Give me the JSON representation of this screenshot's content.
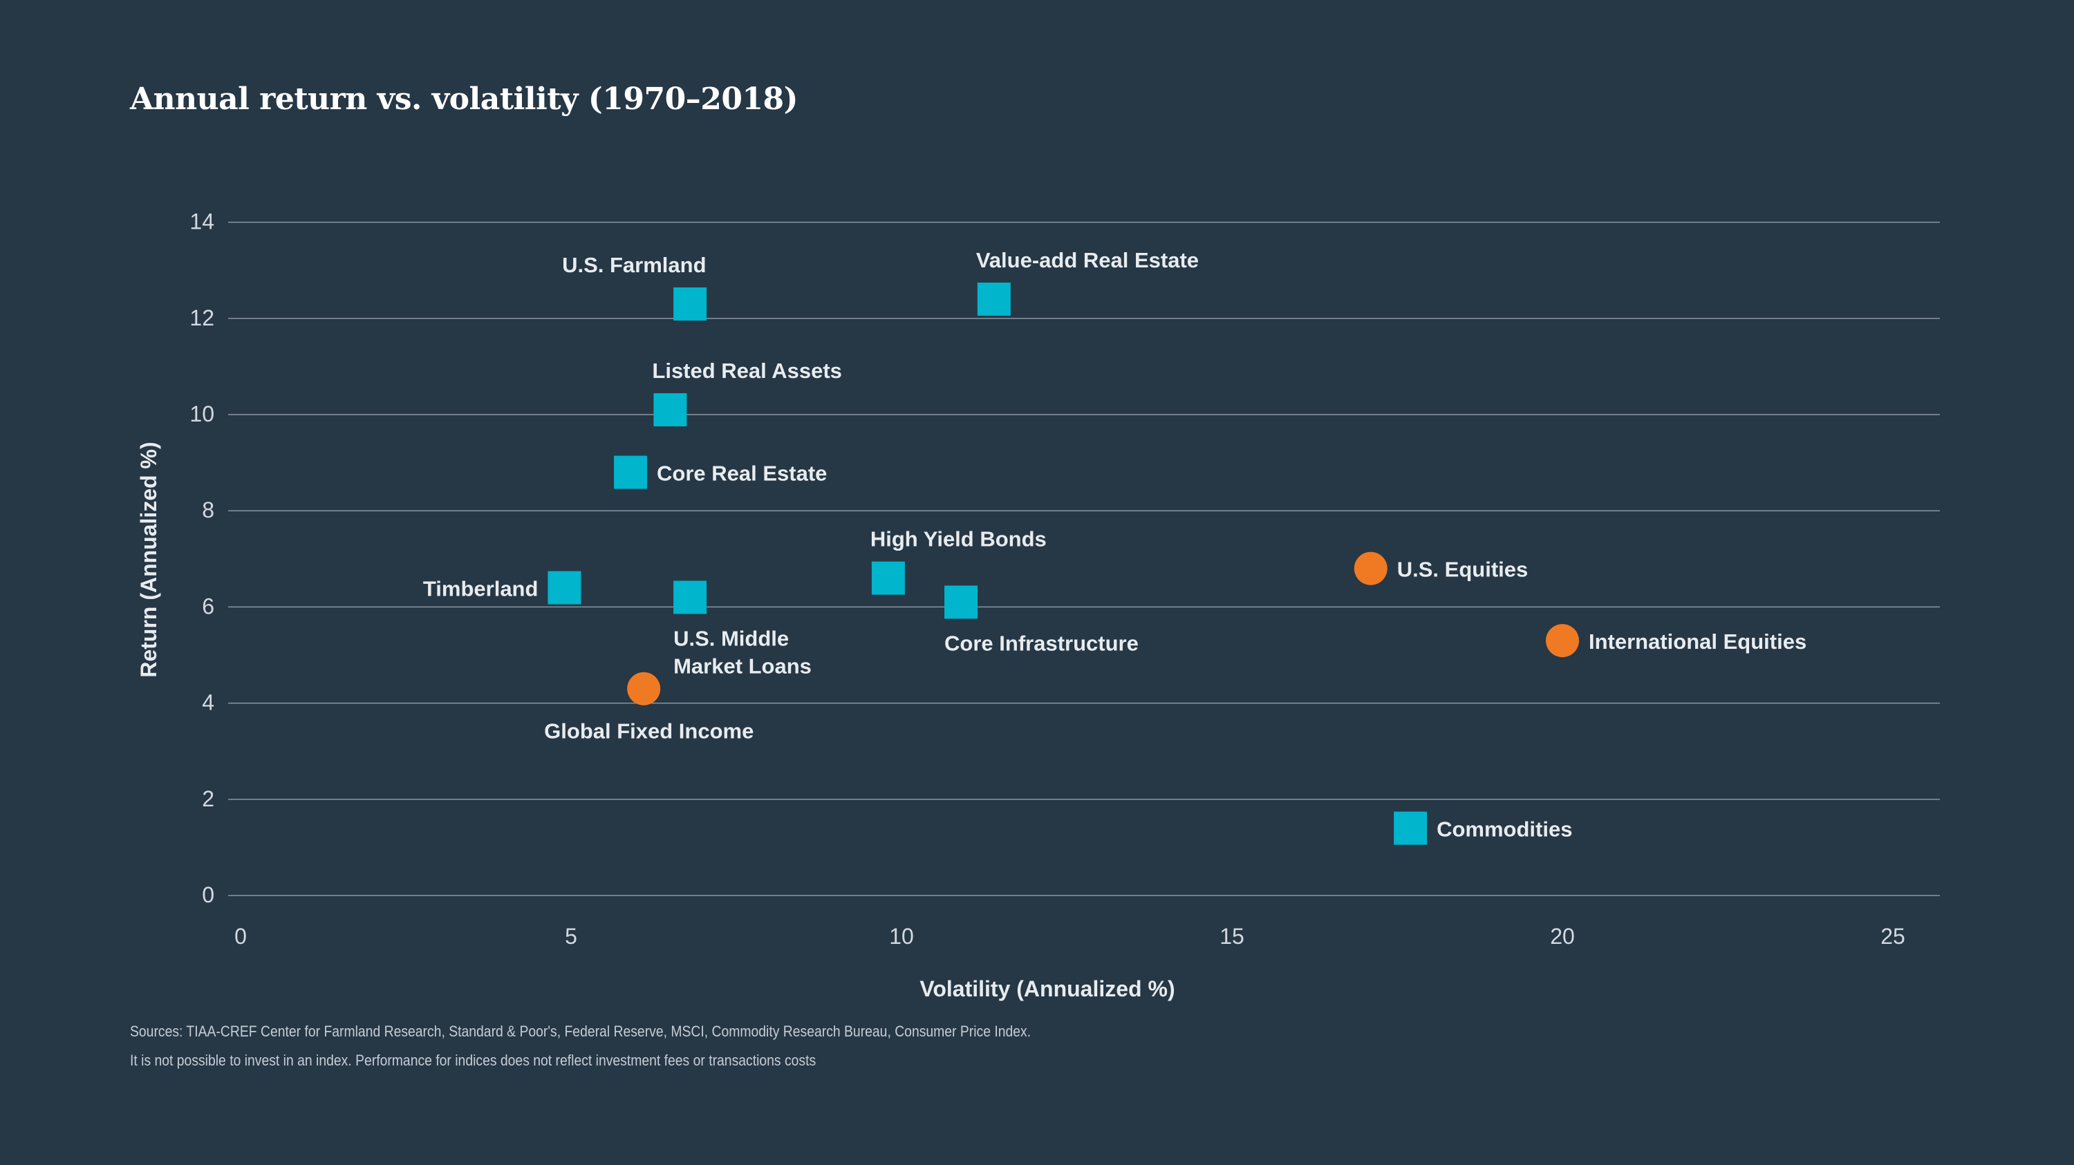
{
  "page": {
    "title": "Annual return vs. volatility (1970–2018)",
    "footnotes": [
      "Sources: TIAA-CREF Center for Farmland Research, Standard & Poor's, Federal Reserve, MSCI, Commodity Research Bureau, Consumer Price Index.",
      "It is not possible to invest in an index. Performance for indices does not reflect investment fees or transactions costs"
    ]
  },
  "colors": {
    "background": "#263746",
    "square_marker": "#00b5cc",
    "circle_marker": "#f07a23",
    "gridline": "#8a96a1",
    "label_text": "#e8ecef",
    "axis_text": "#d4dae0"
  },
  "chart_data": {
    "type": "scatter",
    "title": "Annual return vs. volatility (1970–2018)",
    "xlabel": "Volatility (Annualized %)",
    "ylabel": "Return (Annualized %)",
    "xlim": [
      0,
      26
    ],
    "ylim": [
      0,
      14
    ],
    "xticks": [
      0,
      5,
      10,
      15,
      20,
      25
    ],
    "yticks": [
      0,
      2,
      4,
      6,
      8,
      10,
      12,
      14
    ],
    "grid": "horizontal",
    "legend": "none",
    "points": [
      {
        "label": "U.S. Farmland",
        "x": 6.8,
        "y": 12.3,
        "marker": "square",
        "label_pos": "above-left"
      },
      {
        "label": "Value-add Real Estate",
        "x": 11.4,
        "y": 12.4,
        "marker": "square",
        "label_pos": "above-right"
      },
      {
        "label": "Listed Real Assets",
        "x": 6.5,
        "y": 10.1,
        "marker": "square",
        "label_pos": "above-right"
      },
      {
        "label": "Core Real Estate",
        "x": 5.9,
        "y": 8.8,
        "marker": "square",
        "label_pos": "right"
      },
      {
        "label": "Timberland",
        "x": 4.9,
        "y": 6.4,
        "marker": "square",
        "label_pos": "left"
      },
      {
        "label": "U.S. Middle Market Loans",
        "x": 6.8,
        "y": 6.2,
        "marker": "square",
        "label_pos": "below-right"
      },
      {
        "label": "High Yield Bonds",
        "x": 9.8,
        "y": 6.6,
        "marker": "square",
        "label_pos": "above-right"
      },
      {
        "label": "Core Infrastructure",
        "x": 10.9,
        "y": 6.1,
        "marker": "square",
        "label_pos": "below-right"
      },
      {
        "label": "Global Fixed Income",
        "x": 6.1,
        "y": 4.3,
        "marker": "circle",
        "label_pos": "below-left"
      },
      {
        "label": "U.S. Equities",
        "x": 17.1,
        "y": 6.8,
        "marker": "circle",
        "label_pos": "right"
      },
      {
        "label": "International Equities",
        "x": 20.0,
        "y": 5.3,
        "marker": "circle",
        "label_pos": "right"
      },
      {
        "label": "Commodities",
        "x": 17.7,
        "y": 1.4,
        "marker": "square",
        "label_pos": "right"
      }
    ]
  }
}
